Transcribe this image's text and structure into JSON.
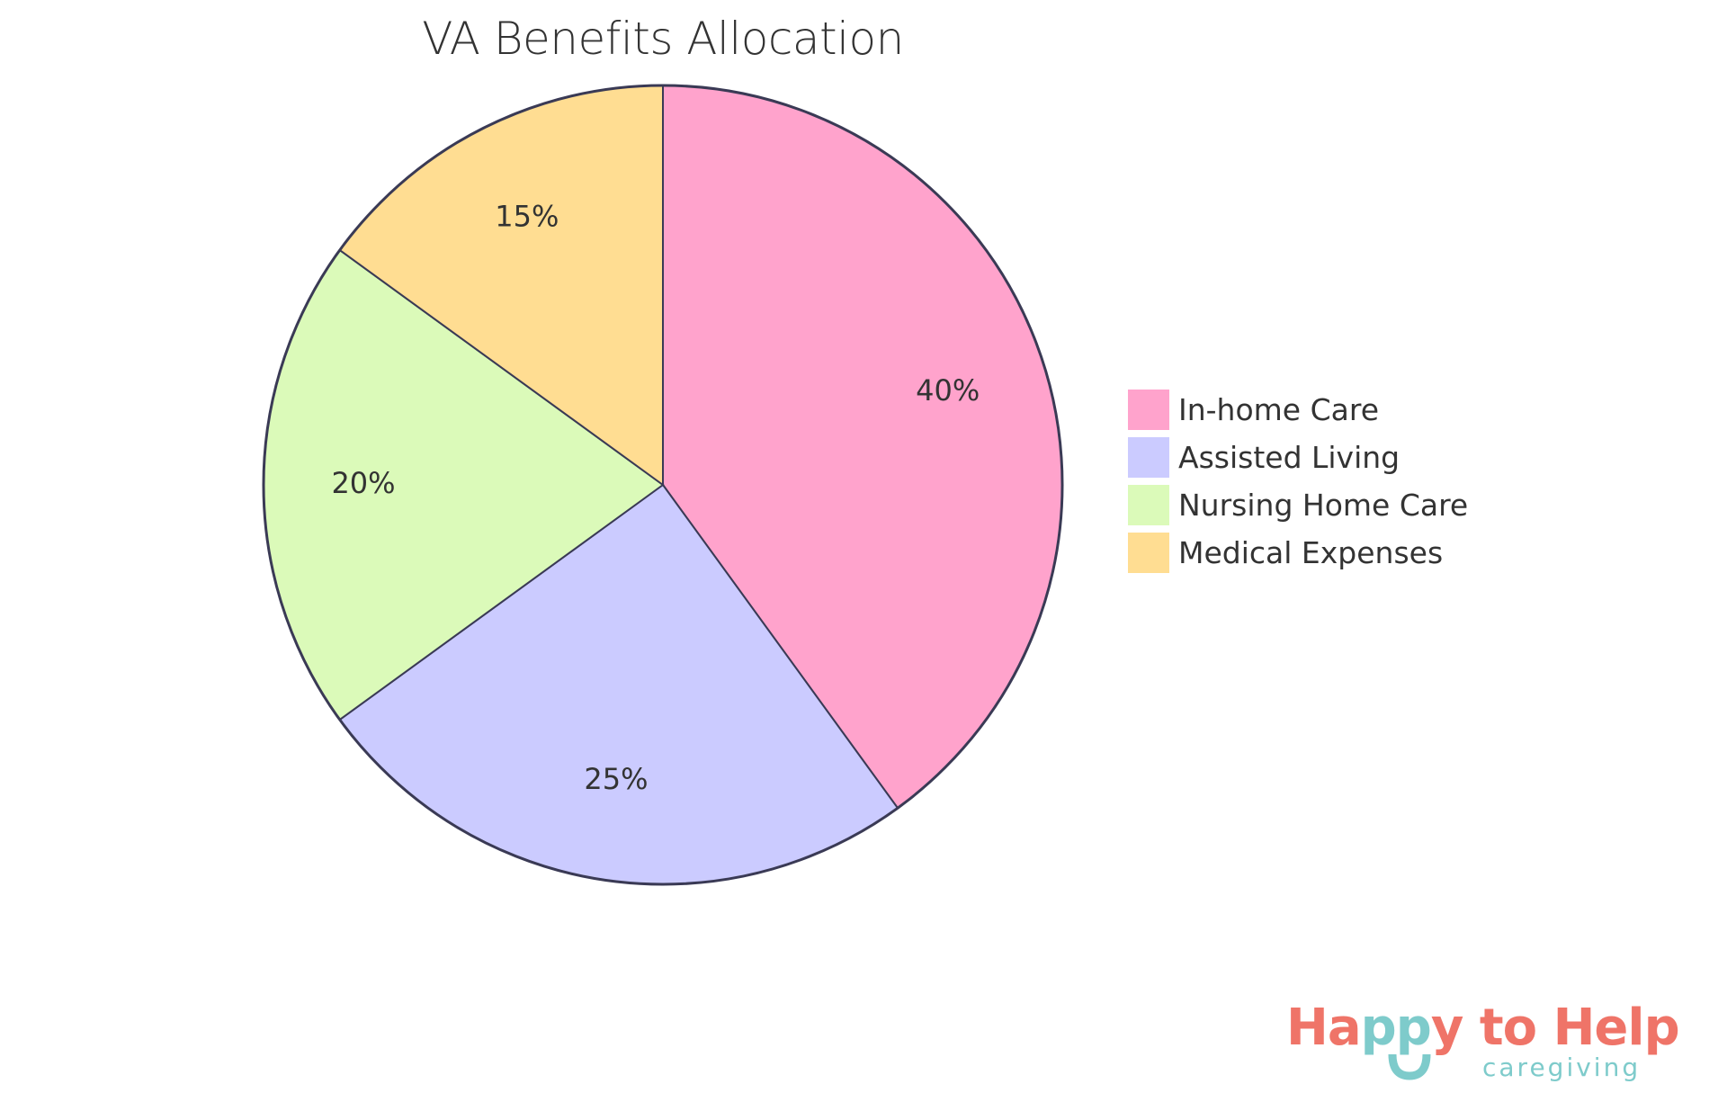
{
  "chart_data": {
    "type": "pie",
    "title": "VA Benefits Allocation",
    "categories": [
      "In-home Care",
      "Assisted Living",
      "Nursing Home Care",
      "Medical Expenses"
    ],
    "values": [
      40,
      25,
      20,
      15
    ],
    "labels": [
      "40%",
      "25%",
      "20%",
      "15%"
    ],
    "colors": [
      "#ffa3cc",
      "#cbcbff",
      "#dbfab9",
      "#ffdd92"
    ],
    "stroke_color": "#3a3a55",
    "legend_position": "right",
    "start_angle": "12 o'clock, clockwise"
  },
  "legend": {
    "items": [
      {
        "label": "In-home Care",
        "color": "#ffa3cc"
      },
      {
        "label": "Assisted Living",
        "color": "#cbcbff"
      },
      {
        "label": "Nursing Home Care",
        "color": "#dbfab9"
      },
      {
        "label": "Medical Expenses",
        "color": "#ffdd92"
      }
    ]
  },
  "logo": {
    "part1": "Ha",
    "part2": "pp",
    "part3": "y to Help",
    "sub": "caregiving",
    "color_primary": "#ef7468",
    "color_secondary": "#7ecbcb"
  }
}
